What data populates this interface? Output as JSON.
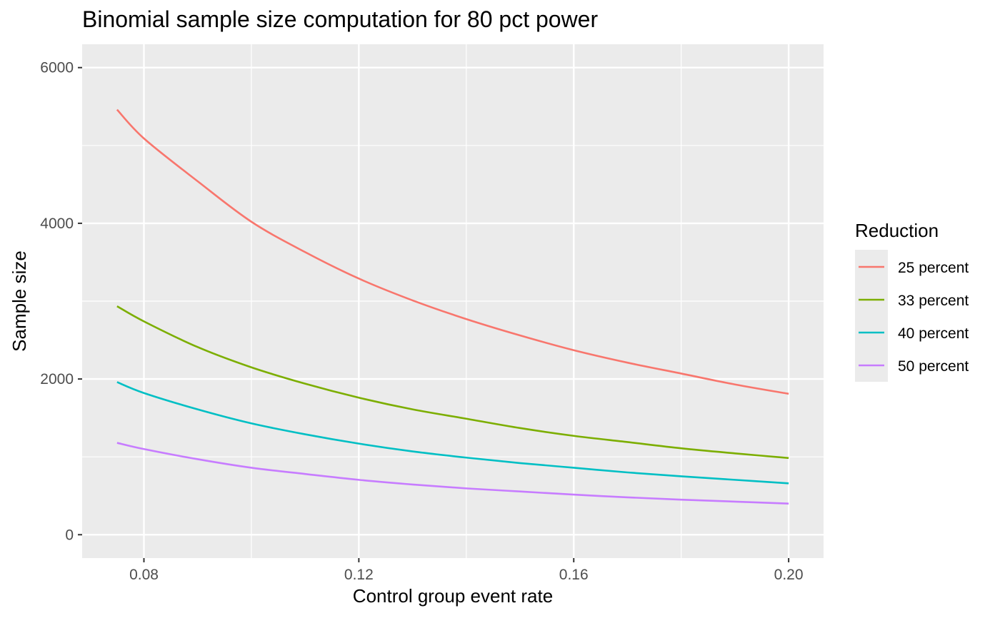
{
  "chart_data": {
    "type": "line",
    "title": "Binomial sample size computation for 80 pct power",
    "xlabel": "Control group event rate",
    "ylabel": "Sample size",
    "xlim": [
      0.0685,
      0.2065
    ],
    "ylim": [
      -300,
      6300
    ],
    "x_ticks": [
      0.08,
      0.12,
      0.16,
      0.2
    ],
    "x_tick_labels": [
      "0.08",
      "0.12",
      "0.16",
      "0.20"
    ],
    "y_ticks": [
      0,
      2000,
      4000,
      6000
    ],
    "y_tick_labels": [
      "0",
      "2000",
      "4000",
      "6000"
    ],
    "grid": true,
    "legend": {
      "title": "Reduction",
      "position": "right"
    },
    "x": [
      0.075,
      0.08,
      0.09,
      0.1,
      0.11,
      0.12,
      0.13,
      0.14,
      0.15,
      0.16,
      0.17,
      0.18,
      0.19,
      0.2
    ],
    "series": [
      {
        "name": "25 percent",
        "color": "#F8766D",
        "values": [
          5460,
          5090,
          4540,
          4020,
          3630,
          3290,
          3010,
          2770,
          2560,
          2370,
          2210,
          2070,
          1930,
          1810
        ]
      },
      {
        "name": "33 percent",
        "color": "#7CAE00",
        "values": [
          2935,
          2740,
          2410,
          2150,
          1940,
          1760,
          1610,
          1490,
          1370,
          1270,
          1190,
          1110,
          1045,
          985
        ]
      },
      {
        "name": "40 percent",
        "color": "#00BFC4",
        "values": [
          1960,
          1820,
          1610,
          1430,
          1290,
          1170,
          1070,
          990,
          920,
          860,
          800,
          750,
          705,
          660
        ]
      },
      {
        "name": "50 percent",
        "color": "#C77CFF",
        "values": [
          1180,
          1100,
          970,
          860,
          780,
          705,
          645,
          595,
          555,
          515,
          480,
          450,
          425,
          400
        ]
      }
    ]
  }
}
